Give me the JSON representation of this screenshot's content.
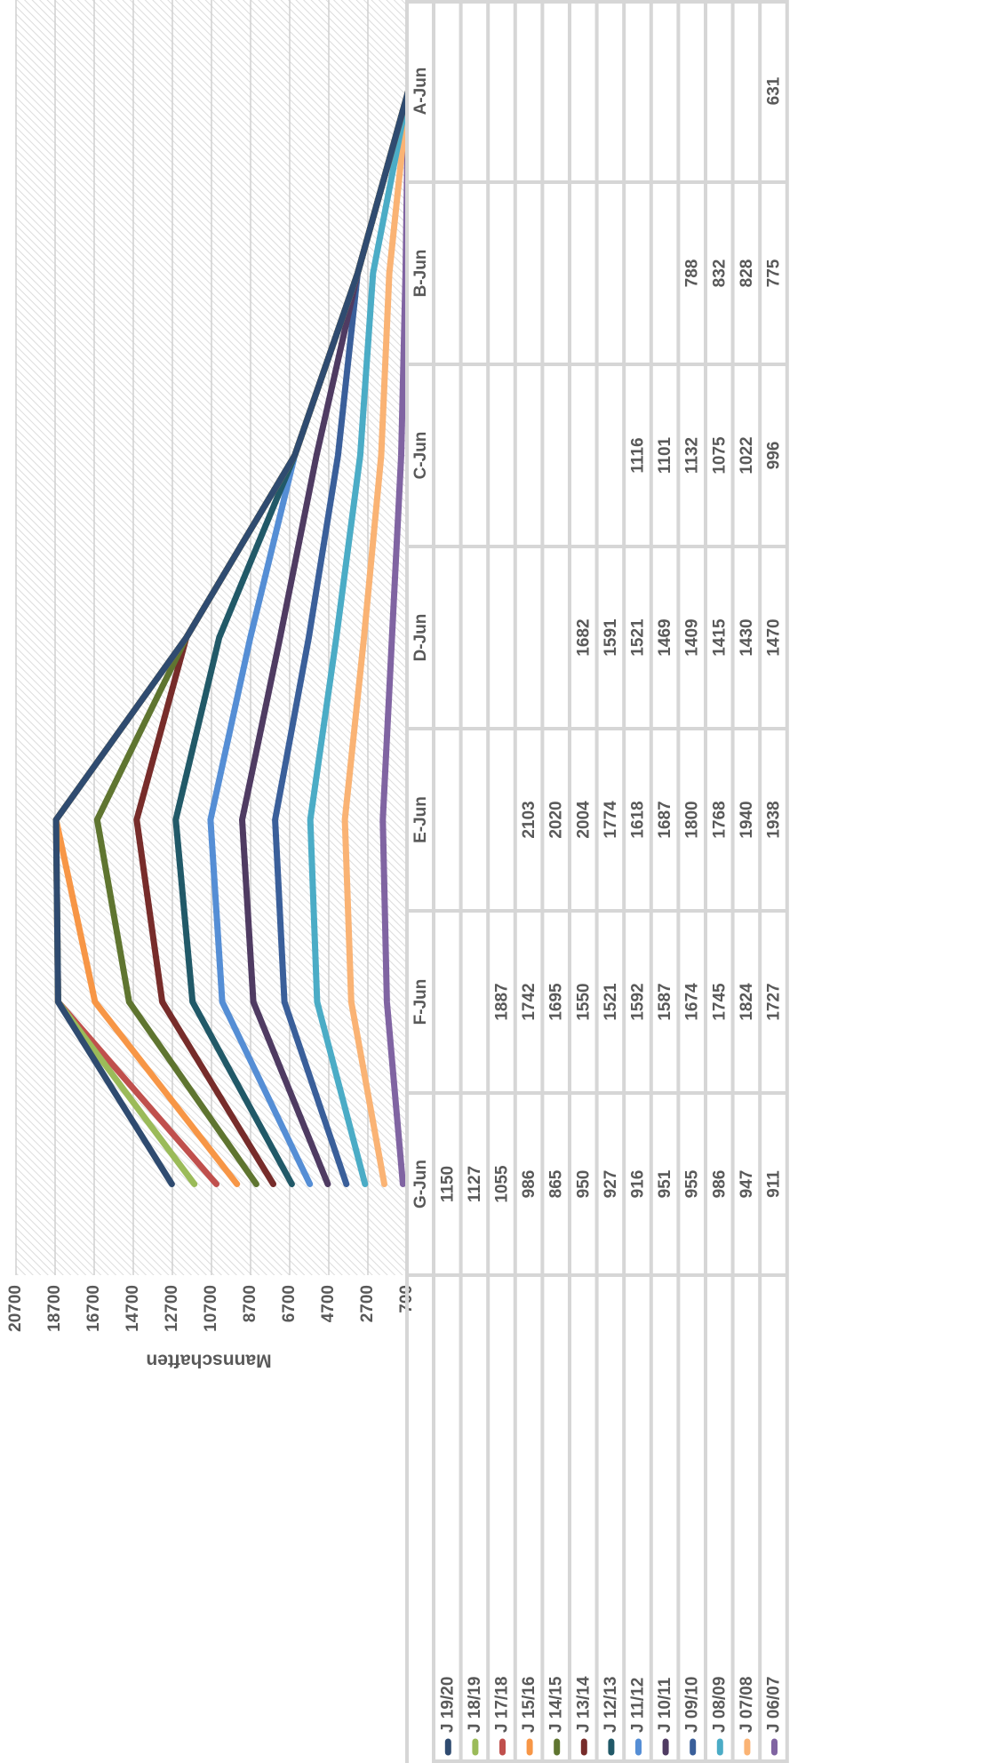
{
  "chart_data": {
    "type": "stacked-line",
    "y_label": "Mannschaften",
    "categories": [
      "G-Jun",
      "F-Jun",
      "E-Jun",
      "D-Jun",
      "C-Jun",
      "B-Jun",
      "A-Jun"
    ],
    "ylim": [
      700,
      20700
    ],
    "yticks": [
      700,
      2700,
      4700,
      6700,
      8700,
      10700,
      12700,
      14700,
      16700,
      18700,
      20700
    ],
    "grid": true,
    "series": [
      {
        "name": "J 19/20",
        "color": "#2f4b70",
        "values": [
          1150,
          null,
          null,
          null,
          null,
          null,
          null
        ]
      },
      {
        "name": "J 18/19",
        "color": "#9bbb59",
        "values": [
          1127,
          null,
          null,
          null,
          null,
          null,
          null
        ]
      },
      {
        "name": "J 17/18",
        "color": "#c0504d",
        "values": [
          1055,
          1887,
          null,
          null,
          null,
          null,
          null
        ]
      },
      {
        "name": "J 15/16",
        "color": "#f79646",
        "values": [
          986,
          1742,
          2103,
          null,
          null,
          null,
          null
        ]
      },
      {
        "name": "J 14/15",
        "color": "#5f7530",
        "values": [
          865,
          1695,
          2020,
          null,
          null,
          null,
          null
        ]
      },
      {
        "name": "J 13/14",
        "color": "#772c2a",
        "values": [
          950,
          1550,
          2004,
          1682,
          null,
          null,
          null
        ]
      },
      {
        "name": "J 12/13",
        "color": "#215968",
        "values": [
          927,
          1521,
          1774,
          1591,
          null,
          null,
          null
        ]
      },
      {
        "name": "J 11/12",
        "color": "#558ed5",
        "values": [
          916,
          1592,
          1618,
          1521,
          1116,
          null,
          null
        ]
      },
      {
        "name": "J 10/11",
        "color": "#4f3b62",
        "values": [
          951,
          1587,
          1687,
          1469,
          1101,
          null,
          null
        ]
      },
      {
        "name": "J 09/10",
        "color": "#3a5f9a",
        "values": [
          955,
          1674,
          1800,
          1409,
          1132,
          788,
          null
        ]
      },
      {
        "name": "J 08/09",
        "color": "#4bacc6",
        "values": [
          986,
          1745,
          1768,
          1415,
          1075,
          832,
          null
        ]
      },
      {
        "name": "J 07/08",
        "color": "#fab374",
        "values": [
          947,
          1824,
          1940,
          1430,
          1022,
          828,
          null
        ]
      },
      {
        "name": "J 06/07",
        "color": "#8064a2",
        "values": [
          911,
          1727,
          1938,
          1470,
          996,
          775,
          631
        ]
      }
    ]
  }
}
